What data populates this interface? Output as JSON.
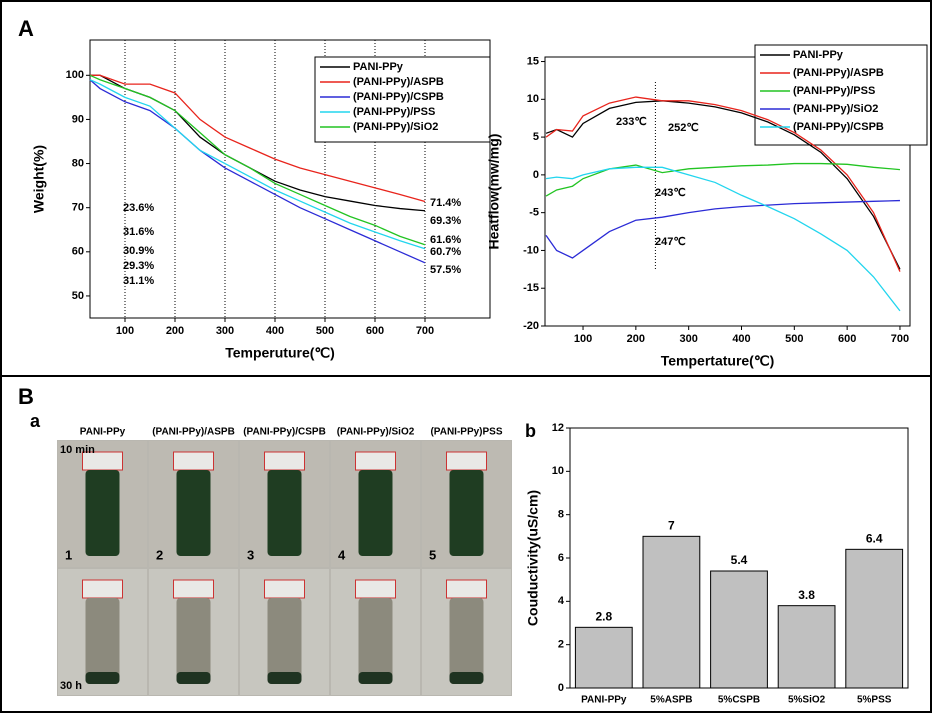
{
  "panel_labels": [
    "A",
    "B",
    "a",
    "b"
  ],
  "chart_data": [
    {
      "type": "line",
      "y_label": "Weight(%)",
      "x_label": "Temperuture(℃)",
      "xlim": [
        30,
        830
      ],
      "ylim": [
        45,
        108
      ],
      "xticks": [
        100,
        200,
        300,
        400,
        500,
        600,
        700
      ],
      "yticks": [
        50,
        60,
        70,
        80,
        90,
        100
      ],
      "grid": true,
      "x": [
        30,
        50,
        100,
        150,
        200,
        250,
        300,
        350,
        400,
        450,
        500,
        550,
        600,
        650,
        700
      ],
      "series": [
        {
          "name": "PANI-PPy",
          "color": "#000000",
          "values": [
            100,
            100,
            97,
            95,
            92,
            86,
            82,
            79,
            76,
            74,
            72.5,
            71.5,
            70.5,
            69.8,
            69.3
          ]
        },
        {
          "name": "(PANI-PPy)/ASPB",
          "color": "#e8241c",
          "values": [
            100,
            100,
            98,
            98,
            96,
            90,
            86,
            83.5,
            81,
            79,
            77.5,
            76,
            74.5,
            73,
            71.4
          ]
        },
        {
          "name": "(PANI-PPy)/CSPB",
          "color": "#2b2bd6",
          "values": [
            99,
            97,
            94,
            92,
            88,
            83,
            79,
            76,
            73,
            70,
            67.5,
            65,
            62.5,
            60,
            57.5
          ]
        },
        {
          "name": "(PANI-PPy)/PSS",
          "color": "#22d5ee",
          "values": [
            99,
            98,
            95,
            93,
            88,
            83,
            80,
            77,
            74,
            71.5,
            69,
            66.5,
            64.5,
            62.5,
            60.7
          ]
        },
        {
          "name": "(PANI-PPy)/SiO2",
          "color": "#22c422",
          "values": [
            100,
            99,
            97,
            95,
            92,
            87,
            82,
            79,
            75.5,
            73,
            70.5,
            68,
            66,
            63.5,
            61.6
          ]
        }
      ],
      "annotations": [
        "23.6%",
        "31.6%",
        "30.9%",
        "29.3%",
        "31.1%",
        "71.4%",
        "69.3%",
        "61.6%",
        "60.7%",
        "57.5%"
      ]
    },
    {
      "type": "line",
      "y_label": "Heatflow(mw/mg)",
      "x_label": "Tempertature(℃)",
      "xlim": [
        28,
        719
      ],
      "ylim": [
        -20,
        15.6
      ],
      "xticks": [
        100,
        200,
        300,
        400,
        500,
        600,
        700
      ],
      "yticks": [
        -20,
        -15,
        -10,
        -5,
        0,
        5,
        10,
        15
      ],
      "grid": false,
      "x": [
        30,
        50,
        80,
        100,
        150,
        200,
        250,
        300,
        350,
        400,
        450,
        500,
        550,
        600,
        650,
        700
      ],
      "series": [
        {
          "name": "PANI-PPy",
          "color": "#000000",
          "values": [
            5.5,
            6,
            5,
            6.8,
            8.8,
            9.6,
            9.8,
            9.5,
            9,
            8.2,
            7,
            5.3,
            3,
            -0.5,
            -5.5,
            -12.5
          ]
        },
        {
          "name": "(PANI-PPy)/ASPB",
          "color": "#e8241c",
          "values": [
            5,
            6,
            5.8,
            7.8,
            9.5,
            10.3,
            9.8,
            9.8,
            9.3,
            8.5,
            7.3,
            5.6,
            3.3,
            0,
            -5,
            -12.8
          ]
        },
        {
          "name": "(PANI-PPy)/PSS",
          "color": "#22c422",
          "values": [
            -2.8,
            -2,
            -1.5,
            -0.5,
            0.8,
            1.3,
            0.3,
            0.8,
            1,
            1.2,
            1.3,
            1.5,
            1.5,
            1.4,
            1,
            0.7
          ]
        },
        {
          "name": "(PANI-PPy)/SiO2",
          "color": "#2b2bd6",
          "values": [
            -8,
            -10,
            -11,
            -10,
            -7.5,
            -6,
            -5.6,
            -5,
            -4.5,
            -4.2,
            -4,
            -3.8,
            -3.7,
            -3.6,
            -3.5,
            -3.4
          ]
        },
        {
          "name": "(PANI-PPy)/CSPB",
          "color": "#22d5ee",
          "values": [
            -0.5,
            -0.3,
            -0.5,
            0,
            0.8,
            1,
            1,
            0,
            -1,
            -2.7,
            -4.2,
            -5.8,
            -7.8,
            -10,
            -13.5,
            -18
          ]
        }
      ],
      "annotations": [
        "233℃",
        "252℃",
        "243℃",
        "247℃"
      ]
    },
    {
      "type": "bar",
      "y_label": "Couductivity(uS/cm)",
      "categories": [
        "PANI-PPy",
        "5%ASPB",
        "5%CSPB",
        "5%SiO2",
        "5%PSS"
      ],
      "values": [
        2.8,
        7,
        5.4,
        3.8,
        6.4
      ],
      "color": "#c0c0c0",
      "ylim": [
        0,
        12
      ],
      "yticks": [
        0,
        2,
        4,
        6,
        8,
        10,
        12
      ]
    }
  ],
  "photos": {
    "samples": [
      "PANI-PPy",
      "(PANI-PPy)/ASPB",
      "(PANI-PPy)/CSPB",
      "(PANI-PPy)/SiO2",
      "(PANI-PPy)PSS"
    ],
    "times": [
      "10 min",
      "30 h"
    ],
    "numbers": [
      "1",
      "2",
      "3",
      "4",
      "5"
    ]
  }
}
